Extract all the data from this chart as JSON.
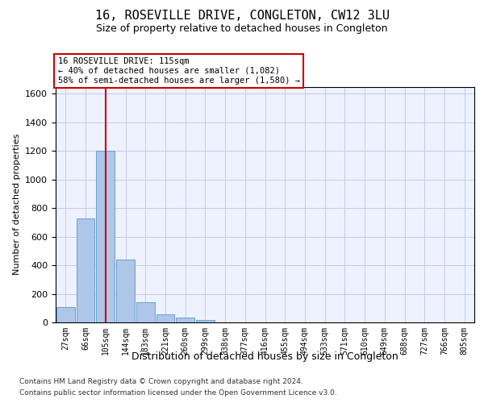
{
  "title": "16, ROSEVILLE DRIVE, CONGLETON, CW12 3LU",
  "subtitle": "Size of property relative to detached houses in Congleton",
  "xlabel": "Distribution of detached houses by size in Congleton",
  "ylabel": "Number of detached properties",
  "footer1": "Contains HM Land Registry data © Crown copyright and database right 2024.",
  "footer2": "Contains public sector information licensed under the Open Government Licence v3.0.",
  "bar_labels": [
    "27sqm",
    "66sqm",
    "105sqm",
    "144sqm",
    "183sqm",
    "221sqm",
    "260sqm",
    "299sqm",
    "338sqm",
    "377sqm",
    "416sqm",
    "455sqm",
    "494sqm",
    "533sqm",
    "571sqm",
    "610sqm",
    "649sqm",
    "688sqm",
    "727sqm",
    "766sqm",
    "805sqm"
  ],
  "bar_values": [
    105,
    730,
    1200,
    440,
    140,
    55,
    33,
    15,
    0,
    0,
    0,
    0,
    0,
    0,
    0,
    0,
    0,
    0,
    0,
    0,
    0
  ],
  "bar_color": "#aec6e8",
  "bar_edge_color": "#5599cc",
  "grid_color": "#c8c8e8",
  "background_color": "#eef2ff",
  "vline_x_index": 2,
  "vline_color": "#cc0000",
  "annotation_line1": "16 ROSEVILLE DRIVE: 115sqm",
  "annotation_line2": "← 40% of detached houses are smaller (1,082)",
  "annotation_line3": "58% of semi-detached houses are larger (1,580) →",
  "ylim": [
    0,
    1650
  ],
  "yticks": [
    0,
    200,
    400,
    600,
    800,
    1000,
    1200,
    1400,
    1600
  ]
}
